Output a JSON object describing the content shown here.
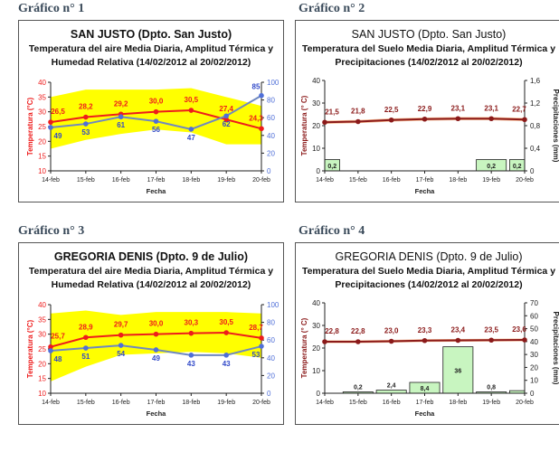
{
  "charts_titles": [
    "Gráfico n° 1",
    "Gráfico n° 2",
    "Gráfico n° 3",
    "Gráfico n° 4"
  ],
  "chart_data": [
    {
      "type": "line",
      "kind": "air",
      "title": "SAN JUSTO (Dpto. San Justo)",
      "subtitle1": "Temperatura del aire Media Diaria, Amplitud Térmica y",
      "subtitle2": "Humedad Relativa (14/02/2012 al 20/02/2012)",
      "xlabel": "Fecha",
      "ylabel": "Temperatura (°C)",
      "y2label": "Humedad Relativa (%",
      "categories": [
        "14-feb",
        "15-feb",
        "16-feb",
        "17-feb",
        "18-feb",
        "19-feb",
        "20-feb"
      ],
      "ylim": [
        10,
        40
      ],
      "yticks": [
        10,
        15,
        20,
        25,
        30,
        35,
        40
      ],
      "y2lim": [
        0,
        100
      ],
      "y2ticks": [
        0,
        20,
        40,
        60,
        80,
        100
      ],
      "series": [
        {
          "name": "Temperatura media",
          "axis": "y",
          "values": [
            26.5,
            28.2,
            29.2,
            30.0,
            30.5,
            27.4,
            24.3
          ],
          "color": "#ee1c1c"
        },
        {
          "name": "Humedad relativa",
          "axis": "y2",
          "values": [
            49,
            53,
            61,
            56,
            47,
            62,
            85
          ],
          "color": "#4f6fd8"
        }
      ],
      "band": {
        "name": "Amplitud térmica",
        "min": [
          17.5,
          20.5,
          22.5,
          24,
          23,
          19,
          19
        ],
        "max": [
          35,
          37.5,
          37.5,
          37.5,
          38,
          35,
          32
        ],
        "color": "#ffff00"
      }
    },
    {
      "type": "line",
      "kind": "soil",
      "title": "SAN JUSTO (Dpto. San Justo)",
      "subtitle1": "Temperatura del Suelo Media Diaria, Amplitud Térmica y",
      "subtitle2": "Precipitaciones (14/02/2012 al 20/02/2012)",
      "xlabel": "Fecha",
      "ylabel": "Temperatura (° C)",
      "y2label": "Precipitaciones (mm)",
      "categories": [
        "14-feb",
        "15-feb",
        "16-feb",
        "17-feb",
        "18-feb",
        "19-feb",
        "20-feb"
      ],
      "ylim": [
        0,
        40
      ],
      "yticks": [
        0,
        10,
        20,
        30,
        40
      ],
      "y2lim": [
        0,
        1.6
      ],
      "y2ticks": [
        0,
        0.4,
        0.8,
        1.2,
        1.6
      ],
      "series": [
        {
          "name": "Temperatura media suelo",
          "axis": "y",
          "values": [
            21.5,
            21.8,
            22.5,
            22.9,
            23.1,
            23.1,
            22.7
          ],
          "color": "#8b1a1a"
        }
      ],
      "band": {
        "name": "Amplitud térmica",
        "min": [
          20.8,
          21.1,
          21.8,
          22.2,
          22.4,
          22.4,
          22.0
        ],
        "max": [
          22.2,
          22.5,
          23.2,
          23.6,
          23.8,
          23.8,
          23.4
        ],
        "color": "#f5a673"
      },
      "bars": {
        "name": "Precipitaciones",
        "axis": "y2",
        "values": [
          0.2,
          0,
          0,
          0,
          0,
          0.2,
          0.2
        ],
        "labels": [
          "0,2",
          null,
          null,
          null,
          null,
          "0,2",
          "0,2"
        ],
        "color": "#c8f5c0"
      }
    },
    {
      "type": "line",
      "kind": "air",
      "title": "GREGORIA DENIS (Dpto. 9 de Julio)",
      "subtitle1": "Temperatura del aire Media Diaria, Amplitud Térmica y",
      "subtitle2": "Humedad Relativa (14/02/2012 al 20/02/2012)",
      "xlabel": "Fecha",
      "ylabel": "Temperatura (°C)",
      "y2label": "Humedad Relativa (%",
      "categories": [
        "14-feb",
        "15-feb",
        "16-feb",
        "17-feb",
        "18-feb",
        "19-feb",
        "20-feb"
      ],
      "ylim": [
        10,
        40
      ],
      "yticks": [
        10,
        15,
        20,
        25,
        30,
        35,
        40
      ],
      "y2lim": [
        0,
        100
      ],
      "y2ticks": [
        0,
        20,
        40,
        60,
        80,
        100
      ],
      "series": [
        {
          "name": "Temperatura media",
          "axis": "y",
          "values": [
            25.7,
            28.9,
            29.7,
            30.0,
            30.3,
            30.5,
            28.7
          ],
          "color": "#ee1c1c"
        },
        {
          "name": "Humedad relativa",
          "axis": "y2",
          "values": [
            48,
            51,
            54,
            49,
            43,
            43,
            53
          ],
          "color": "#4f6fd8"
        }
      ],
      "band": {
        "name": "Amplitud térmica",
        "min": [
          14,
          19,
          23,
          23.5,
          24,
          23.5,
          22
        ],
        "max": [
          37,
          38,
          36.5,
          37.5,
          37.5,
          37.5,
          37
        ],
        "color": "#ffff00"
      }
    },
    {
      "type": "line",
      "kind": "soil",
      "title": "GREGORIA DENIS (Dpto. 9 de Julio)",
      "subtitle1": "Temperatura del Suelo Media Diaria, Amplitud Térmica y",
      "subtitle2": "Precipitaciones (14/02/2012 al 20/02/2012)",
      "xlabel": "Fecha",
      "ylabel": "Temperatura (° C)",
      "y2label": "Precipitaciones (mm)",
      "categories": [
        "14-feb",
        "15-feb",
        "16-feb",
        "17-feb",
        "18-feb",
        "19-feb",
        "20-feb"
      ],
      "ylim": [
        0,
        40
      ],
      "yticks": [
        0,
        10,
        20,
        30,
        40
      ],
      "y2lim": [
        0,
        70
      ],
      "y2ticks": [
        0,
        10,
        20,
        30,
        40,
        50,
        60,
        70
      ],
      "series": [
        {
          "name": "Temperatura media suelo",
          "axis": "y",
          "values": [
            22.8,
            22.8,
            23.0,
            23.3,
            23.4,
            23.5,
            23.6
          ],
          "color": "#8b1a1a"
        }
      ],
      "band": {
        "name": "Amplitud térmica",
        "min": [
          22.2,
          22.2,
          22.4,
          22.7,
          22.8,
          22.9,
          23.0
        ],
        "max": [
          23.4,
          23.4,
          23.6,
          23.9,
          24.0,
          24.1,
          24.2
        ],
        "color": "#f5a673"
      },
      "bars": {
        "name": "Precipitaciones",
        "axis": "y2",
        "values": [
          0,
          0.2,
          2.4,
          8.4,
          36,
          0.8,
          2
        ],
        "labels": [
          null,
          "0,2",
          "2,4",
          "8,4",
          "36",
          "0,8",
          null
        ],
        "color": "#c8f5c0"
      }
    }
  ]
}
